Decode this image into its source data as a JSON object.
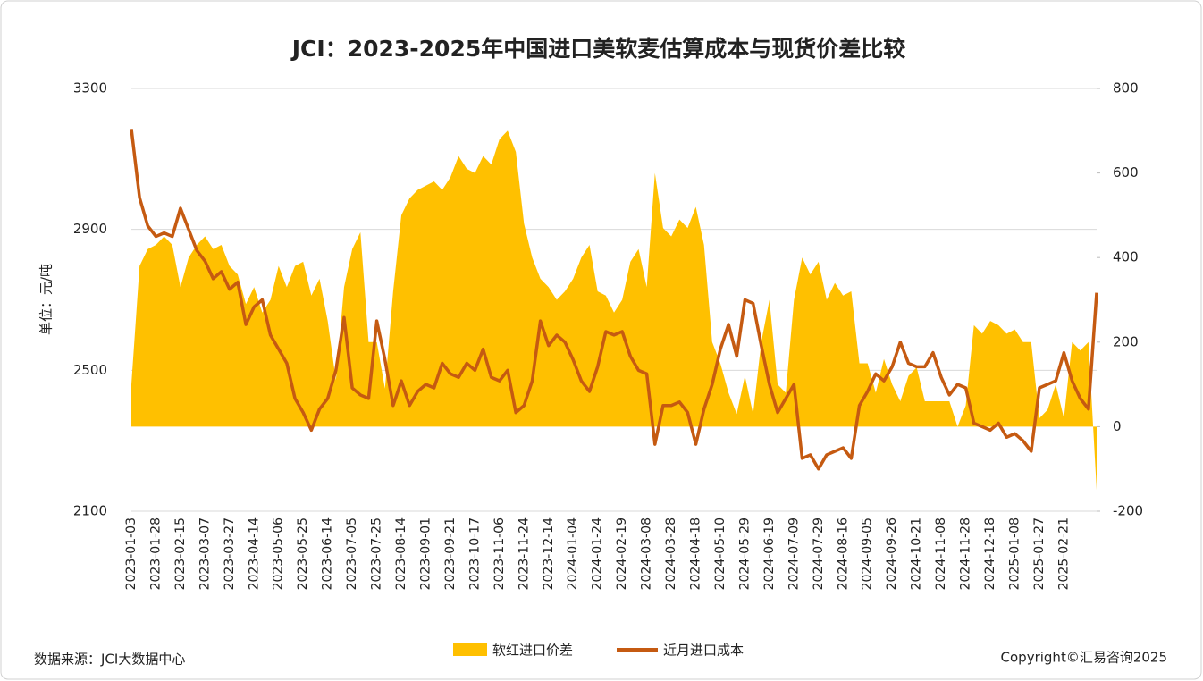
{
  "chart_data": {
    "type": "combo",
    "title": "JCI：2023-2025年中国进口美软麦估算成本与现货价差比较",
    "y_label": "单位：元/吨",
    "source": "数据来源：JCI大数据中心",
    "copyright": "Copyright©汇易咨询2025",
    "categories": [
      "2023-01-03",
      null,
      null,
      "2023-01-28",
      null,
      null,
      "2023-02-15",
      null,
      null,
      "2023-03-07",
      null,
      null,
      "2023-03-27",
      null,
      null,
      "2023-04-14",
      null,
      null,
      "2023-05-06",
      null,
      null,
      "2023-05-25",
      null,
      null,
      "2023-06-14",
      null,
      null,
      "2023-07-05",
      null,
      null,
      "2023-07-25",
      null,
      null,
      "2023-08-14",
      null,
      null,
      "2023-09-01",
      null,
      null,
      "2023-09-21",
      null,
      null,
      "2023-10-17",
      null,
      null,
      "2023-11-06",
      null,
      null,
      "2023-11-24",
      null,
      null,
      "2023-12-14",
      null,
      null,
      "2024-01-04",
      null,
      null,
      "2024-01-24",
      null,
      null,
      "2024-02-19",
      null,
      null,
      "2024-03-08",
      null,
      null,
      "2024-03-28",
      null,
      null,
      "2024-04-18",
      null,
      null,
      "2024-05-10",
      null,
      null,
      "2024-05-29",
      null,
      null,
      "2024-06-19",
      null,
      null,
      "2024-07-09",
      null,
      null,
      "2024-07-29",
      null,
      null,
      "2024-08-16",
      null,
      null,
      "2024-09-05",
      null,
      null,
      "2024-09-26",
      null,
      null,
      "2024-10-21",
      null,
      null,
      "2024-11-08",
      null,
      null,
      "2024-11-28",
      null,
      null,
      "2024-12-18",
      null,
      null,
      "2025-01-08",
      null,
      null,
      "2025-01-27",
      null,
      null,
      "2025-02-21",
      null,
      null,
      null,
      null
    ],
    "series": [
      {
        "name": "软红进口价差",
        "type": "area",
        "axis": "y2",
        "color": "#FFC000",
        "values": [
          100,
          380,
          420,
          430,
          450,
          430,
          330,
          400,
          430,
          450,
          420,
          430,
          380,
          360,
          290,
          330,
          270,
          300,
          380,
          330,
          380,
          390,
          310,
          350,
          250,
          110,
          330,
          420,
          460,
          200,
          200,
          90,
          320,
          500,
          540,
          560,
          570,
          580,
          560,
          590,
          640,
          610,
          600,
          640,
          620,
          680,
          700,
          650,
          480,
          400,
          350,
          330,
          300,
          320,
          350,
          400,
          430,
          320,
          310,
          270,
          300,
          390,
          420,
          330,
          600,
          470,
          450,
          490,
          470,
          520,
          430,
          200,
          150,
          80,
          30,
          120,
          30,
          200,
          300,
          100,
          80,
          300,
          400,
          360,
          390,
          300,
          340,
          310,
          320,
          150,
          150,
          80,
          160,
          100,
          60,
          120,
          140,
          60,
          60,
          60,
          60,
          0,
          50,
          240,
          220,
          250,
          240,
          220,
          230,
          200,
          200,
          20,
          40,
          100,
          20,
          200,
          180,
          200,
          -150
        ]
      },
      {
        "name": "近月进口成本",
        "type": "line",
        "axis": "y",
        "color": "#C55A11",
        "values": [
          3185,
          2990,
          2910,
          2880,
          2890,
          2880,
          2960,
          2900,
          2840,
          2810,
          2760,
          2780,
          2730,
          2750,
          2630,
          2680,
          2700,
          2600,
          2560,
          2520,
          2420,
          2380,
          2330,
          2390,
          2420,
          2500,
          2650,
          2450,
          2430,
          2420,
          2640,
          2530,
          2400,
          2470,
          2400,
          2440,
          2460,
          2450,
          2520,
          2490,
          2480,
          2520,
          2500,
          2560,
          2480,
          2470,
          2500,
          2380,
          2400,
          2470,
          2640,
          2570,
          2600,
          2580,
          2530,
          2470,
          2440,
          2510,
          2610,
          2600,
          2610,
          2540,
          2500,
          2490,
          2290,
          2400,
          2400,
          2410,
          2380,
          2290,
          2390,
          2460,
          2560,
          2630,
          2540,
          2700,
          2690,
          2570,
          2460,
          2380,
          2420,
          2460,
          2250,
          2260,
          2220,
          2260,
          2270,
          2280,
          2250,
          2400,
          2440,
          2490,
          2470,
          2510,
          2580,
          2520,
          2510,
          2510,
          2550,
          2480,
          2430,
          2460,
          2450,
          2350,
          2340,
          2330,
          2350,
          2310,
          2320,
          2300,
          2270,
          2450,
          2460,
          2470,
          2550,
          2470,
          2420,
          2390,
          2720
        ]
      }
    ],
    "ylim": [
      2100,
      3300
    ],
    "yticks": [
      2100,
      2500,
      2900,
      3300
    ],
    "y2lim": [
      -200,
      800
    ],
    "y2ticks": [
      -200,
      0,
      200,
      400,
      600,
      800
    ],
    "grid": true
  }
}
